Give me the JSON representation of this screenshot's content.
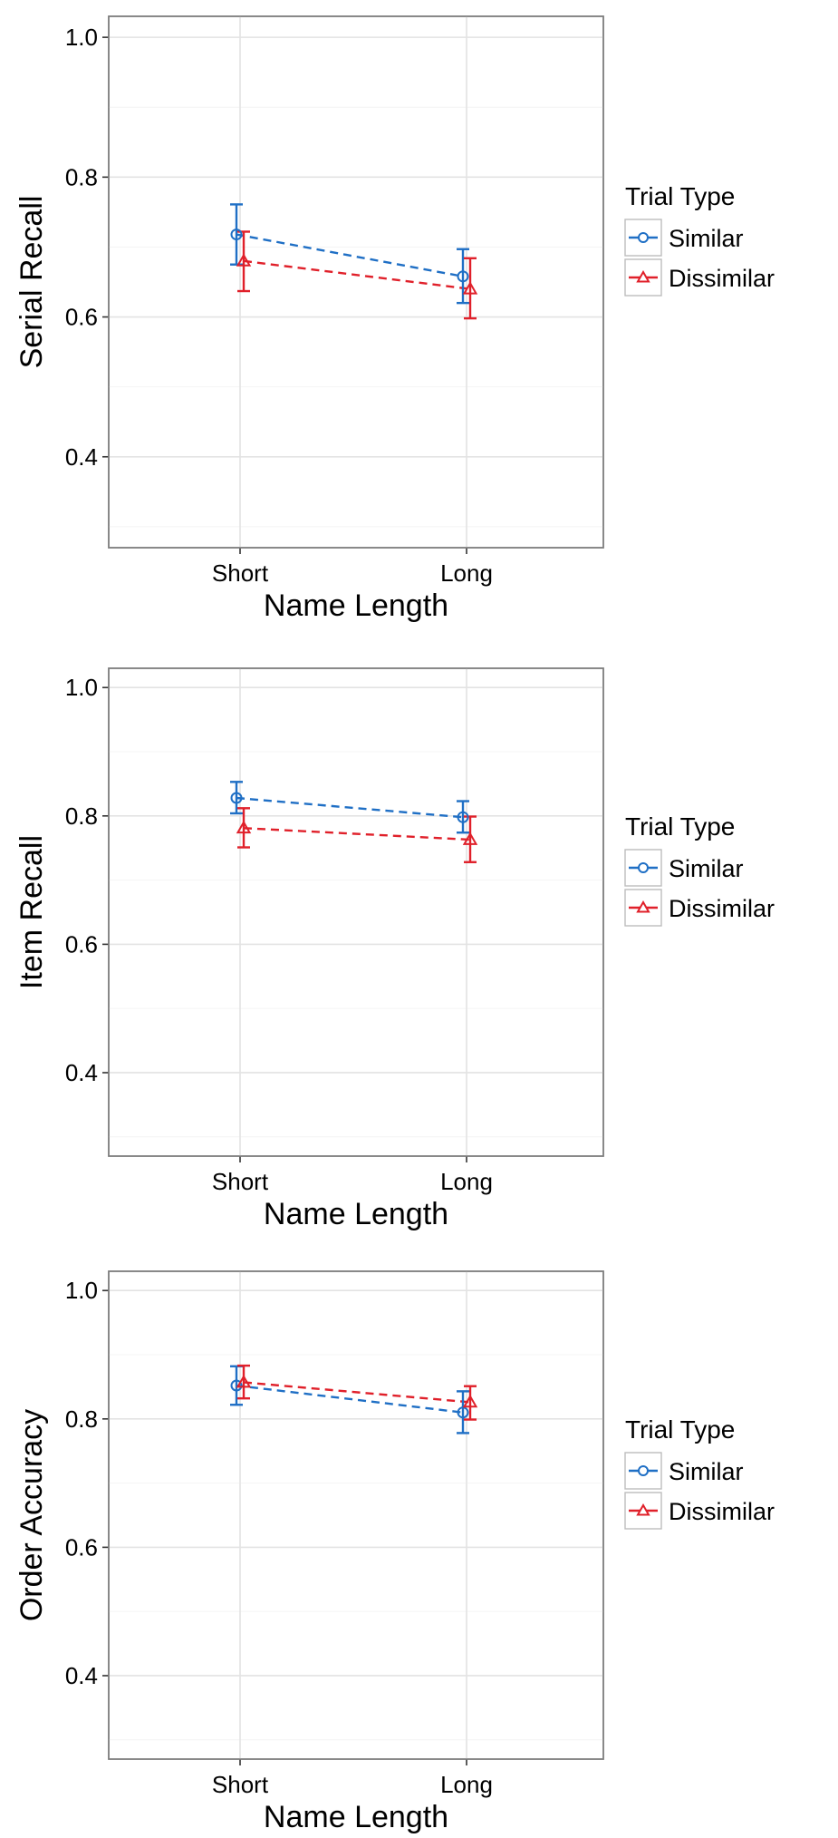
{
  "chart_data": [
    {
      "type": "line",
      "ylabel": "Serial Recall",
      "xlabel": "Name Length",
      "categories": [
        "Short",
        "Long"
      ],
      "ylim": [
        0.27,
        1.03
      ],
      "yticks": [
        0.4,
        0.6,
        0.8,
        1.0
      ],
      "ytick_labels": [
        "0.4",
        "0.6",
        "0.8",
        "1.0"
      ],
      "grid": true,
      "legend": {
        "title": "Trial Type",
        "position": "right"
      },
      "series": [
        {
          "name": "Similar",
          "color": "#1f6fc5",
          "marker": "circle",
          "values": [
            0.718,
            0.658
          ],
          "err_low": [
            0.675,
            0.62
          ],
          "err_high": [
            0.761,
            0.697
          ]
        },
        {
          "name": "Dissimilar",
          "color": "#e0202a",
          "marker": "triangle",
          "values": [
            0.68,
            0.64
          ],
          "err_low": [
            0.637,
            0.598
          ],
          "err_high": [
            0.722,
            0.684
          ]
        }
      ]
    },
    {
      "type": "line",
      "ylabel": "Item Recall",
      "xlabel": "Name Length",
      "categories": [
        "Short",
        "Long"
      ],
      "ylim": [
        0.27,
        1.03
      ],
      "yticks": [
        0.4,
        0.6,
        0.8,
        1.0
      ],
      "ytick_labels": [
        "0.4",
        "0.6",
        "0.8",
        "1.0"
      ],
      "grid": true,
      "legend": {
        "title": "Trial Type",
        "position": "right"
      },
      "series": [
        {
          "name": "Similar",
          "color": "#1f6fc5",
          "marker": "circle",
          "values": [
            0.828,
            0.798
          ],
          "err_low": [
            0.804,
            0.774
          ],
          "err_high": [
            0.853,
            0.823
          ]
        },
        {
          "name": "Dissimilar",
          "color": "#e0202a",
          "marker": "triangle",
          "values": [
            0.781,
            0.763
          ],
          "err_low": [
            0.751,
            0.728
          ],
          "err_high": [
            0.812,
            0.799
          ]
        }
      ]
    },
    {
      "type": "line",
      "ylabel": "Order Accuracy",
      "xlabel": "Name Length",
      "categories": [
        "Short",
        "Long"
      ],
      "ylim": [
        0.27,
        1.03
      ],
      "yticks": [
        0.4,
        0.6,
        0.8,
        1.0
      ],
      "ytick_labels": [
        "0.4",
        "0.6",
        "0.8",
        "1.0"
      ],
      "grid": true,
      "legend": {
        "title": "Trial Type",
        "position": "right"
      },
      "series": [
        {
          "name": "Similar",
          "color": "#1f6fc5",
          "marker": "circle",
          "values": [
            0.852,
            0.81
          ],
          "err_low": [
            0.822,
            0.778
          ],
          "err_high": [
            0.882,
            0.843
          ]
        },
        {
          "name": "Dissimilar",
          "color": "#e0202a",
          "marker": "triangle",
          "values": [
            0.857,
            0.826
          ],
          "err_low": [
            0.832,
            0.799
          ],
          "err_high": [
            0.883,
            0.851
          ]
        }
      ]
    }
  ]
}
